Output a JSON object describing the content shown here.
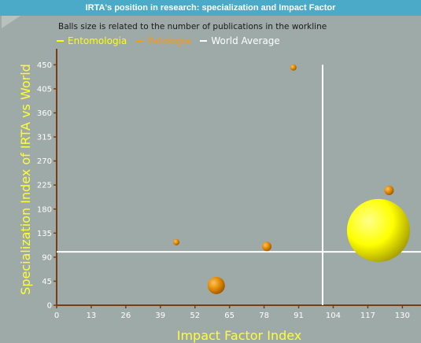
{
  "colors": {
    "entomologia": "#ffff00",
    "patologia": "#ff9900",
    "world_average": "#ffffff",
    "axis": "#7a3d10",
    "label_yellow": "#ffff33"
  },
  "header": {
    "title": "IRTA's position in research: specialization and Impact Factor",
    "subtitle": "Balls size is related to the number of publications in the workline"
  },
  "chart_data": {
    "type": "scatter",
    "xlabel": "Impact Factor Index",
    "ylabel": "Specialization Index of IRTA vs World",
    "xlim": [
      0,
      137
    ],
    "ylim": [
      0,
      480
    ],
    "x_ticks": [
      0,
      13,
      26,
      39,
      52,
      65,
      78,
      91,
      104,
      117,
      130
    ],
    "y_ticks": [
      0,
      45,
      90,
      135,
      180,
      225,
      270,
      315,
      360,
      405,
      450
    ],
    "grid": false,
    "legend_position": "top-left",
    "legend": [
      "Entomologia",
      "Patologia",
      "World Average"
    ],
    "series": [
      {
        "name": "Entomologia",
        "points": [
          {
            "x": 121,
            "y": 140,
            "size": 40
          }
        ]
      },
      {
        "name": "Patologia",
        "points": [
          {
            "x": 45,
            "y": 118,
            "size": 4
          },
          {
            "x": 60,
            "y": 37,
            "size": 11
          },
          {
            "x": 79,
            "y": 110,
            "size": 6
          },
          {
            "x": 89,
            "y": 445,
            "size": 4
          },
          {
            "x": 125,
            "y": 215,
            "size": 6
          }
        ]
      }
    ],
    "world_average": {
      "x": 100,
      "y": 100
    }
  }
}
